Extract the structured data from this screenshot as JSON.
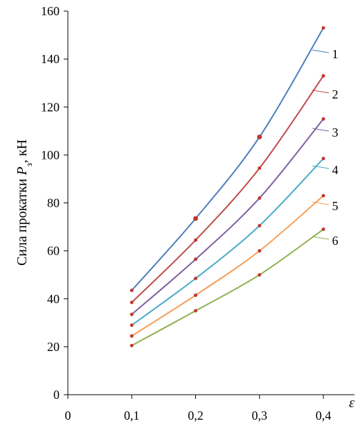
{
  "chart_data": {
    "type": "line",
    "ylabel": {
      "prefix": "Сила прокатки ",
      "symbol": "P",
      "subscript": "з",
      "suffix": ", кН"
    },
    "xlabel": "ε",
    "xlim": [
      0,
      0.4
    ],
    "ylim": [
      0,
      160
    ],
    "xticks": [
      0,
      0.1,
      0.2,
      0.3,
      0.4
    ],
    "xtick_labels": [
      "0",
      "0,1",
      "0,2",
      "0,3",
      "0,4"
    ],
    "yticks": [
      0,
      20,
      40,
      60,
      80,
      100,
      120,
      140,
      160
    ],
    "ytick_labels": [
      "0",
      "20",
      "40",
      "60",
      "80",
      "100",
      "120",
      "140",
      "160"
    ],
    "x": [
      0.1,
      0.2,
      0.3,
      0.4
    ],
    "series": [
      {
        "name": "1",
        "values": [
          43.5,
          73.5,
          107.5,
          153
        ],
        "color": "#4a7ebb"
      },
      {
        "name": "2",
        "values": [
          38.5,
          64.5,
          94.5,
          133
        ],
        "color": "#be4b48"
      },
      {
        "name": "3",
        "values": [
          33.5,
          56.5,
          82,
          115
        ],
        "color": "#7d5fa0"
      },
      {
        "name": "4",
        "values": [
          29,
          48.5,
          70.5,
          98.5
        ],
        "color": "#46aac5"
      },
      {
        "name": "5",
        "values": [
          24.5,
          41.5,
          60,
          83
        ],
        "color": "#f59d56"
      },
      {
        "name": "6",
        "values": [
          20.5,
          35,
          50,
          69
        ],
        "color": "#8cb050"
      }
    ],
    "marker_color": "#c0392b",
    "grid": false
  }
}
